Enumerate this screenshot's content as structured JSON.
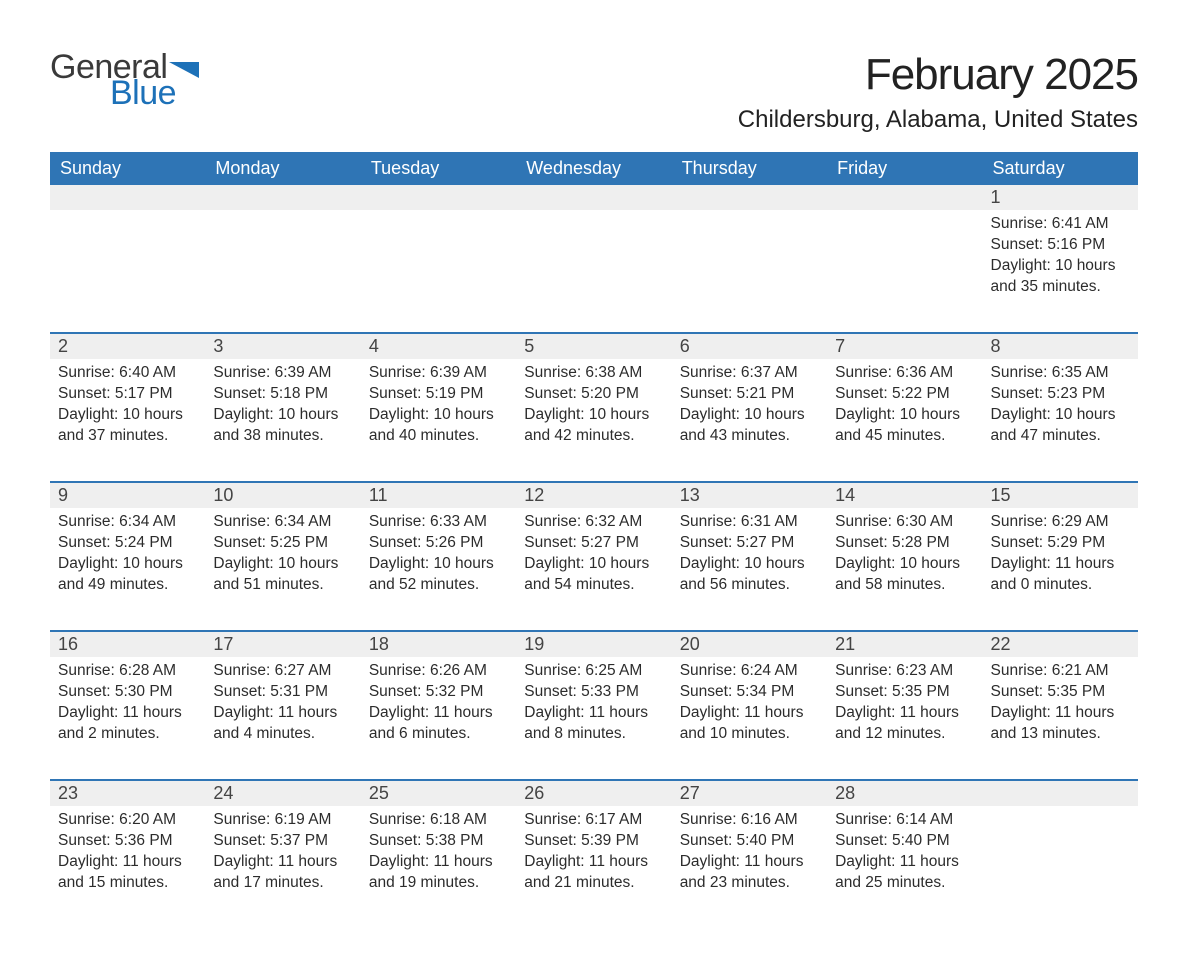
{
  "logo": {
    "text1": "General",
    "text2": "Blue",
    "flag_color": "#1d71b8"
  },
  "header": {
    "month_title": "February 2025",
    "location": "Childersburg, Alabama, United States"
  },
  "colors": {
    "header_bg": "#2f75b5",
    "header_text": "#ffffff",
    "daynum_bg": "#efefef",
    "row_divider": "#2f75b5",
    "body_text": "#2c2c2c",
    "page_bg": "#ffffff"
  },
  "weekdays": [
    "Sunday",
    "Monday",
    "Tuesday",
    "Wednesday",
    "Thursday",
    "Friday",
    "Saturday"
  ],
  "labels": {
    "sunrise": "Sunrise: ",
    "sunset": "Sunset: ",
    "daylight": "Daylight: "
  },
  "weeks": [
    [
      null,
      null,
      null,
      null,
      null,
      null,
      {
        "day": "1",
        "sunrise": "6:41 AM",
        "sunset": "5:16 PM",
        "daylight": "10 hours and 35 minutes."
      }
    ],
    [
      {
        "day": "2",
        "sunrise": "6:40 AM",
        "sunset": "5:17 PM",
        "daylight": "10 hours and 37 minutes."
      },
      {
        "day": "3",
        "sunrise": "6:39 AM",
        "sunset": "5:18 PM",
        "daylight": "10 hours and 38 minutes."
      },
      {
        "day": "4",
        "sunrise": "6:39 AM",
        "sunset": "5:19 PM",
        "daylight": "10 hours and 40 minutes."
      },
      {
        "day": "5",
        "sunrise": "6:38 AM",
        "sunset": "5:20 PM",
        "daylight": "10 hours and 42 minutes."
      },
      {
        "day": "6",
        "sunrise": "6:37 AM",
        "sunset": "5:21 PM",
        "daylight": "10 hours and 43 minutes."
      },
      {
        "day": "7",
        "sunrise": "6:36 AM",
        "sunset": "5:22 PM",
        "daylight": "10 hours and 45 minutes."
      },
      {
        "day": "8",
        "sunrise": "6:35 AM",
        "sunset": "5:23 PM",
        "daylight": "10 hours and 47 minutes."
      }
    ],
    [
      {
        "day": "9",
        "sunrise": "6:34 AM",
        "sunset": "5:24 PM",
        "daylight": "10 hours and 49 minutes."
      },
      {
        "day": "10",
        "sunrise": "6:34 AM",
        "sunset": "5:25 PM",
        "daylight": "10 hours and 51 minutes."
      },
      {
        "day": "11",
        "sunrise": "6:33 AM",
        "sunset": "5:26 PM",
        "daylight": "10 hours and 52 minutes."
      },
      {
        "day": "12",
        "sunrise": "6:32 AM",
        "sunset": "5:27 PM",
        "daylight": "10 hours and 54 minutes."
      },
      {
        "day": "13",
        "sunrise": "6:31 AM",
        "sunset": "5:27 PM",
        "daylight": "10 hours and 56 minutes."
      },
      {
        "day": "14",
        "sunrise": "6:30 AM",
        "sunset": "5:28 PM",
        "daylight": "10 hours and 58 minutes."
      },
      {
        "day": "15",
        "sunrise": "6:29 AM",
        "sunset": "5:29 PM",
        "daylight": "11 hours and 0 minutes."
      }
    ],
    [
      {
        "day": "16",
        "sunrise": "6:28 AM",
        "sunset": "5:30 PM",
        "daylight": "11 hours and 2 minutes."
      },
      {
        "day": "17",
        "sunrise": "6:27 AM",
        "sunset": "5:31 PM",
        "daylight": "11 hours and 4 minutes."
      },
      {
        "day": "18",
        "sunrise": "6:26 AM",
        "sunset": "5:32 PM",
        "daylight": "11 hours and 6 minutes."
      },
      {
        "day": "19",
        "sunrise": "6:25 AM",
        "sunset": "5:33 PM",
        "daylight": "11 hours and 8 minutes."
      },
      {
        "day": "20",
        "sunrise": "6:24 AM",
        "sunset": "5:34 PM",
        "daylight": "11 hours and 10 minutes."
      },
      {
        "day": "21",
        "sunrise": "6:23 AM",
        "sunset": "5:35 PM",
        "daylight": "11 hours and 12 minutes."
      },
      {
        "day": "22",
        "sunrise": "6:21 AM",
        "sunset": "5:35 PM",
        "daylight": "11 hours and 13 minutes."
      }
    ],
    [
      {
        "day": "23",
        "sunrise": "6:20 AM",
        "sunset": "5:36 PM",
        "daylight": "11 hours and 15 minutes."
      },
      {
        "day": "24",
        "sunrise": "6:19 AM",
        "sunset": "5:37 PM",
        "daylight": "11 hours and 17 minutes."
      },
      {
        "day": "25",
        "sunrise": "6:18 AM",
        "sunset": "5:38 PM",
        "daylight": "11 hours and 19 minutes."
      },
      {
        "day": "26",
        "sunrise": "6:17 AM",
        "sunset": "5:39 PM",
        "daylight": "11 hours and 21 minutes."
      },
      {
        "day": "27",
        "sunrise": "6:16 AM",
        "sunset": "5:40 PM",
        "daylight": "11 hours and 23 minutes."
      },
      {
        "day": "28",
        "sunrise": "6:14 AM",
        "sunset": "5:40 PM",
        "daylight": "11 hours and 25 minutes."
      },
      null
    ]
  ]
}
